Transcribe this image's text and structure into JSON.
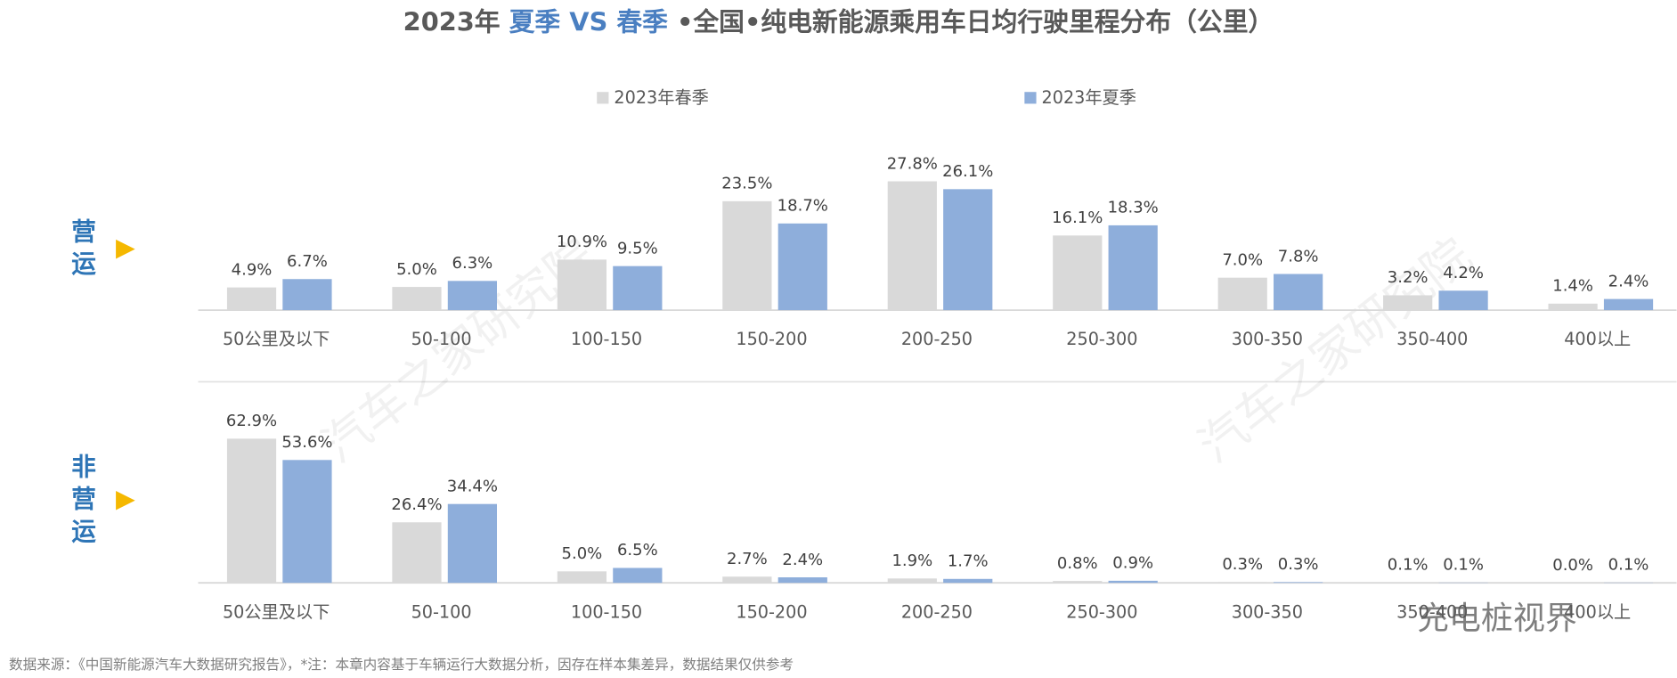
{
  "title": [
    "2023年",
    "夏季",
    "VS",
    "春季",
    "•全国•纯电新能源乘用车日均行驶里程分布（公里）"
  ],
  "source": "数据来源：《中国新能源汽车大数据研究报告》，*注：本章内容基于车辆运行大数据分析，因存在样本集差异，数据结果仅供参考",
  "watermarks": [
    "汽车之家研究院",
    "汽车之家研究院",
    "充电桩视界"
  ],
  "chart_data": [
    {
      "type": "bar",
      "panel_label": "营运",
      "categories": [
        "50公里及以下",
        "50-100",
        "100-150",
        "150-200",
        "200-250",
        "250-300",
        "300-350",
        "350-400",
        "400以上"
      ],
      "ylim": [
        0,
        30
      ],
      "series": [
        {
          "name": "2023年春季",
          "color": "#d9d9d9",
          "values": [
            4.9,
            5.0,
            10.9,
            23.5,
            27.8,
            16.1,
            7.0,
            3.2,
            1.4
          ],
          "value_labels": [
            "4.9%",
            "5.0%",
            "10.9%",
            "23.5%",
            "27.8%",
            "16.1%",
            "7.0%",
            "3.2%",
            "1.4%"
          ]
        },
        {
          "name": "2023年夏季",
          "color": "#8eaedb",
          "values": [
            6.7,
            6.3,
            9.5,
            18.7,
            26.1,
            18.3,
            7.8,
            4.2,
            2.4
          ],
          "value_labels": [
            "6.7%",
            "6.3%",
            "9.5%",
            "18.7%",
            "26.1%",
            "18.3%",
            "7.8%",
            "4.2%",
            "2.4%"
          ]
        }
      ]
    },
    {
      "type": "bar",
      "panel_label": "非营运",
      "categories": [
        "50公里及以下",
        "50-100",
        "100-150",
        "150-200",
        "200-250",
        "250-300",
        "300-350",
        "350-400",
        "400以上"
      ],
      "ylim": [
        0,
        70
      ],
      "series": [
        {
          "color": "#d9d9d9",
          "values": [
            62.9,
            26.4,
            5.0,
            2.7,
            1.9,
            0.8,
            0.3,
            0.1,
            0.0
          ],
          "value_labels": [
            "62.9%",
            "26.4%",
            "5.0%",
            "2.7%",
            "1.9%",
            "0.8%",
            "0.3%",
            "0.1%",
            "0.0%"
          ]
        },
        {
          "color": "#8eaedb",
          "values": [
            53.6,
            34.4,
            6.5,
            2.4,
            1.7,
            0.9,
            0.3,
            0.1,
            0.1
          ],
          "value_labels": [
            "53.6%",
            "34.4%",
            "6.5%",
            "2.4%",
            "1.7%",
            "0.9%",
            "0.3%",
            "0.1%",
            "0.1%"
          ]
        }
      ]
    }
  ]
}
